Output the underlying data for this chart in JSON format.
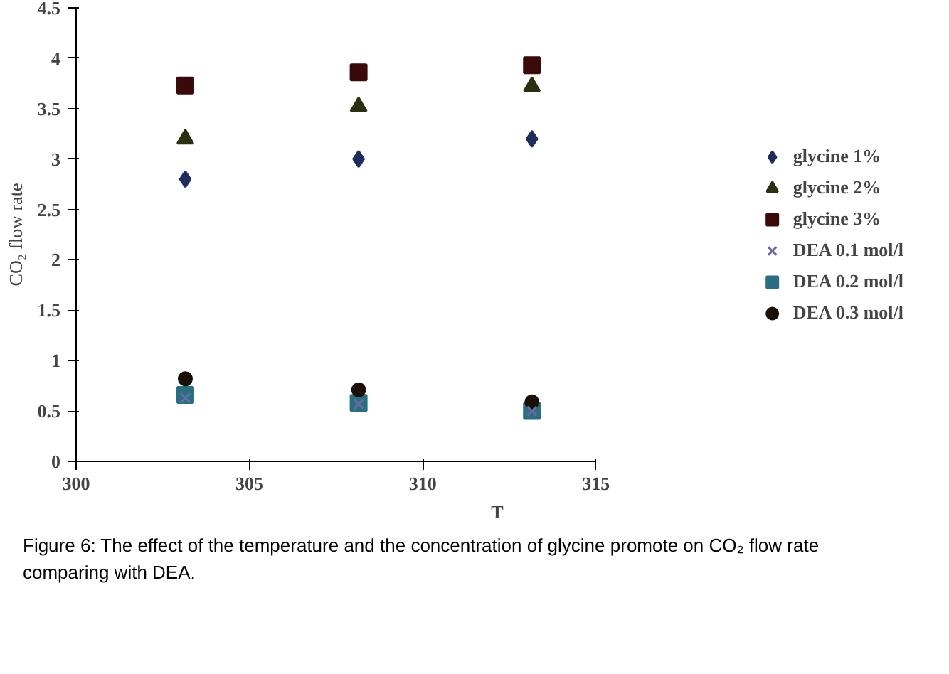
{
  "chart_data": {
    "type": "scatter",
    "xlabel": "T",
    "ylabel": "CO₂ flow rate",
    "x": [
      303.15,
      308.15,
      313.15
    ],
    "xlim": [
      300,
      315
    ],
    "xticks": [
      300,
      305,
      310,
      315
    ],
    "ylim": [
      0,
      4.5
    ],
    "yticks": [
      0,
      0.5,
      1,
      1.5,
      2,
      2.5,
      3,
      3.5,
      4,
      4.5
    ],
    "grid": false,
    "legend": "right",
    "series": [
      {
        "name": "glycine 1%",
        "color": "#1f2d5c",
        "marker": "diamond",
        "values": [
          2.8,
          3.0,
          3.2
        ]
      },
      {
        "name": "glycine 2%",
        "color": "#2a3010",
        "marker": "triangle",
        "values": [
          3.2,
          3.52,
          3.72
        ]
      },
      {
        "name": "glycine 3%",
        "color": "#3a0a0a",
        "marker": "square",
        "values": [
          3.73,
          3.86,
          3.93
        ]
      },
      {
        "name": "DEA 0.1 mol/l",
        "color": "#6a6aa8",
        "marker": "cross",
        "values": [
          0.63,
          0.57,
          0.5
        ]
      },
      {
        "name": "DEA 0.2 mol/l",
        "color": "#2a6f80",
        "marker": "square",
        "values": [
          0.66,
          0.58,
          0.5
        ]
      },
      {
        "name": "DEA 0.3 mol/l",
        "color": "#1a1008",
        "marker": "circle",
        "values": [
          0.82,
          0.71,
          0.59
        ]
      }
    ],
    "annotations": [
      "Figure 6: The effect of the temperature and the concentration of glycine promote on CO₂ flow rate comparing with DEA."
    ]
  }
}
